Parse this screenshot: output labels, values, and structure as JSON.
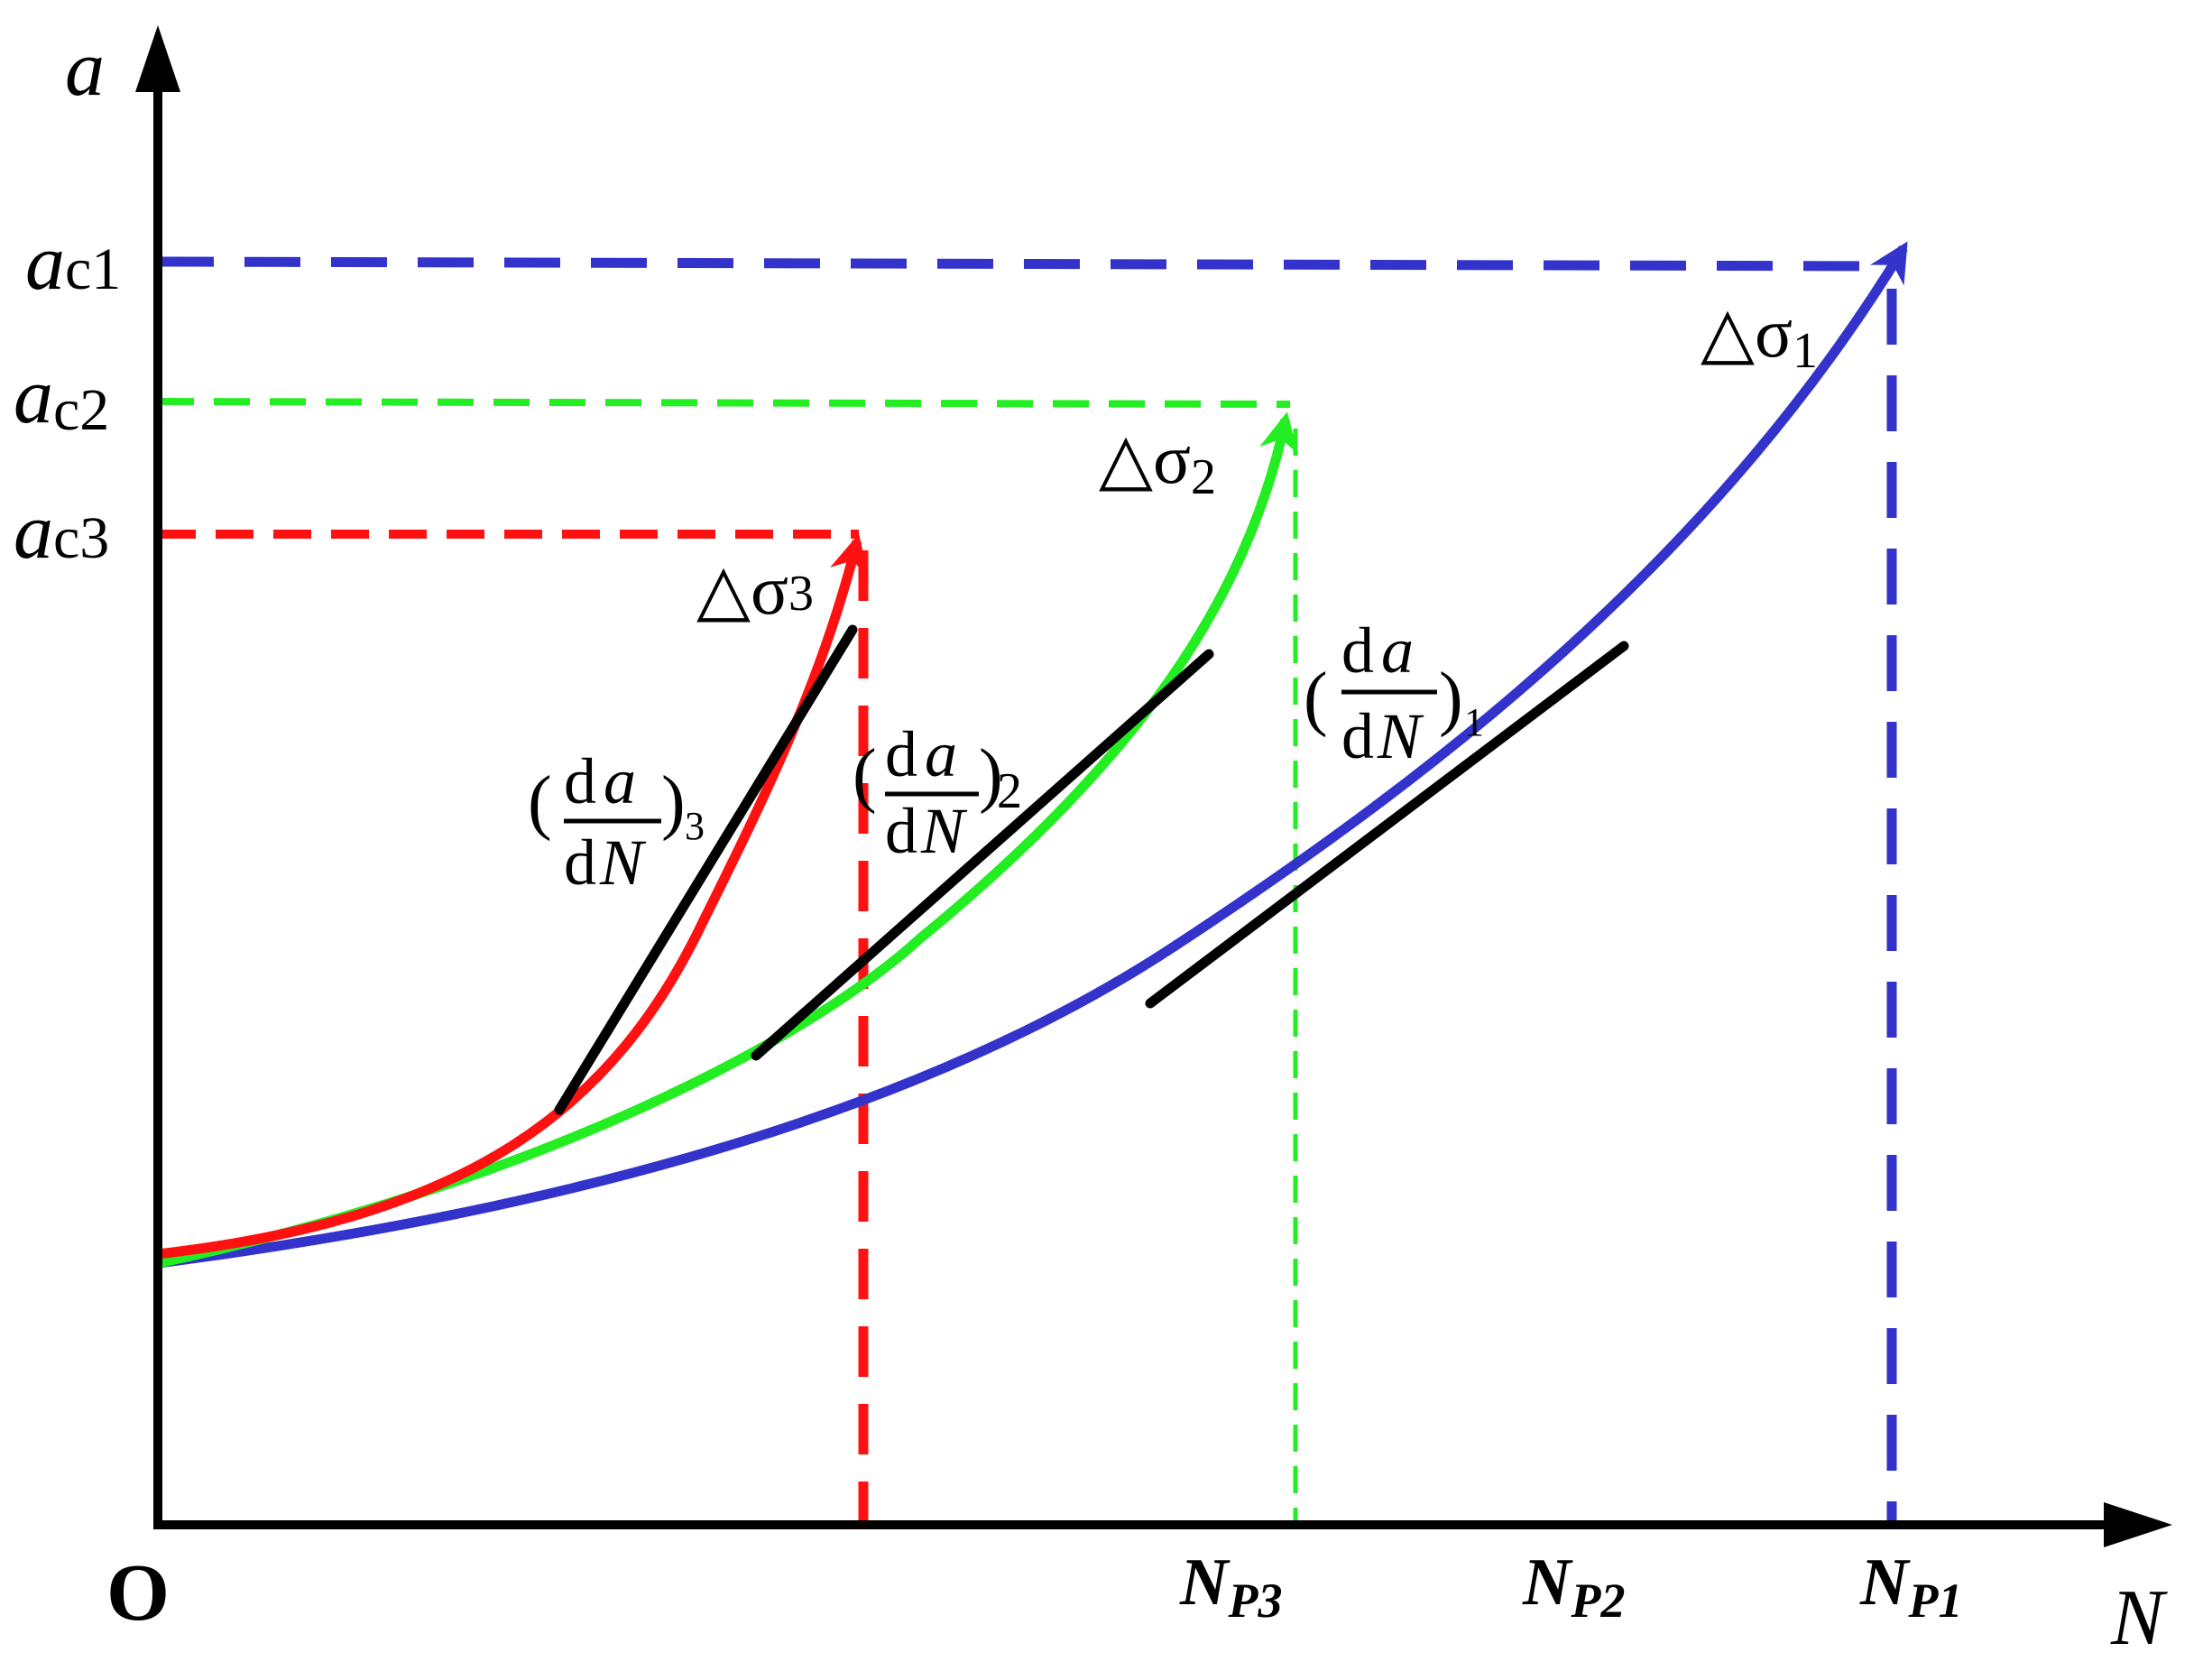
{
  "colors": {
    "axis": "#000000",
    "curve_1": "#3333cc",
    "curve_2": "#22ee22",
    "curve_3": "#ff1111",
    "tangent": "#000000"
  },
  "axes": {
    "y_label": "a",
    "x_label": "N",
    "origin_label": "O"
  },
  "y_ticks": [
    {
      "symbol": "a",
      "sub": "c1"
    },
    {
      "symbol": "a",
      "sub": "c2"
    },
    {
      "symbol": "a",
      "sub": "c3"
    }
  ],
  "x_ticks": [
    {
      "symbol": "N",
      "sub": "P3"
    },
    {
      "symbol": "N",
      "sub": "P2"
    },
    {
      "symbol": "N",
      "sub": "P1"
    }
  ],
  "curve_labels": [
    {
      "symbol": "△σ",
      "sub": "1"
    },
    {
      "symbol": "△σ",
      "sub": "2"
    },
    {
      "symbol": "△σ",
      "sub": "3"
    }
  ],
  "tangent_labels": [
    {
      "open": "(",
      "num_d": "d",
      "num_var": "a",
      "den_d": "d",
      "den_var": "N",
      "close": ")",
      "sub": "1"
    },
    {
      "open": "(",
      "num_d": "d",
      "num_var": "a",
      "den_d": "d",
      "den_var": "N",
      "close": ")",
      "sub": "2"
    },
    {
      "open": "(",
      "num_d": "d",
      "num_var": "a",
      "den_d": "d",
      "den_var": "N",
      "close": ")",
      "sub": "3"
    }
  ]
}
